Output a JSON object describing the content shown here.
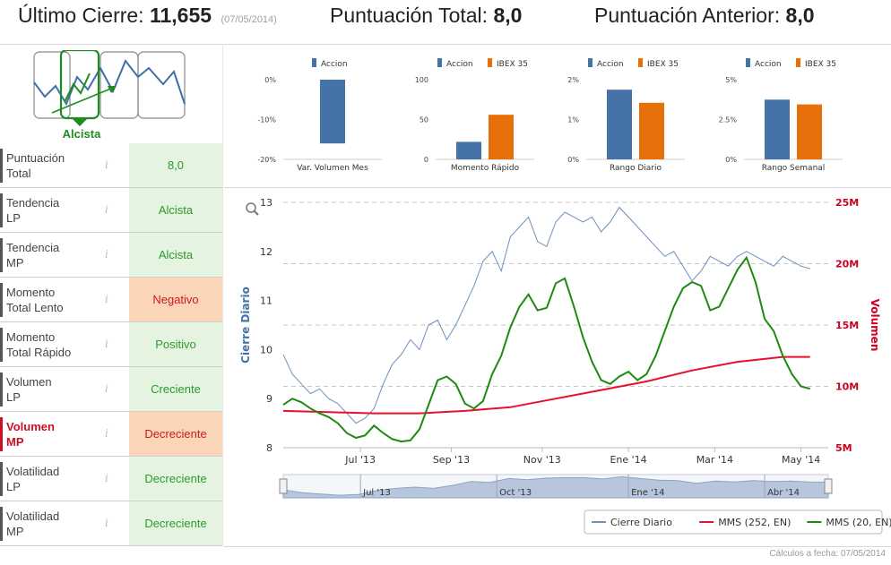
{
  "header": {
    "last_close_label": "Último Cierre:",
    "last_close_value": "11,655",
    "last_close_date": "(07/05/2014)",
    "total_score_label": "Puntuación Total:",
    "total_score_value": "8,0",
    "prev_score_label": "Puntuación Anterior:",
    "prev_score_value": "8,0"
  },
  "trend": {
    "caption": "Alcista"
  },
  "indicators": [
    {
      "label_1": "Puntuación",
      "label_2": "Total",
      "value": "8,0",
      "status": "good",
      "highlight": false
    },
    {
      "label_1": "Tendencia",
      "label_2": "LP",
      "value": "Alcista",
      "status": "good",
      "highlight": false
    },
    {
      "label_1": "Tendencia",
      "label_2": "MP",
      "value": "Alcista",
      "status": "good",
      "highlight": false
    },
    {
      "label_1": "Momento",
      "label_2": "Total Lento",
      "value": "Negativo",
      "status": "bad",
      "highlight": false
    },
    {
      "label_1": "Momento",
      "label_2": "Total Rápido",
      "value": "Positivo",
      "status": "good",
      "highlight": false
    },
    {
      "label_1": "Volumen",
      "label_2": "LP",
      "value": "Creciente",
      "status": "good",
      "highlight": false
    },
    {
      "label_1": "Volumen",
      "label_2": "MP",
      "value": "Decreciente",
      "status": "bad",
      "highlight": true
    },
    {
      "label_1": "Volatilidad",
      "label_2": "LP",
      "value": "Decreciente",
      "status": "good",
      "highlight": false
    },
    {
      "label_1": "Volatilidad",
      "label_2": "MP",
      "value": "Decreciente",
      "status": "good",
      "highlight": false
    }
  ],
  "info_glyph": "i",
  "colors": {
    "accion": "#4572a7",
    "ibex": "#e8700a",
    "cierre": "#6e8fbf",
    "mms252": "#e8102a",
    "mms20": "#1e8a12",
    "axis_blue": "#4572a7",
    "axis_red": "#cc0020"
  },
  "chart_data": [
    {
      "type": "bar",
      "categories": [
        "Var. Volumen Mes"
      ],
      "series": [
        {
          "name": "Accion",
          "values": [
            -16
          ]
        }
      ],
      "ylim": [
        -20,
        0
      ],
      "yticks": [
        "0%",
        "-10%",
        "-20%"
      ],
      "ytick_values": [
        0,
        -10,
        -20
      ]
    },
    {
      "type": "bar",
      "categories": [
        "Momento Rápido"
      ],
      "series": [
        {
          "name": "Accion",
          "values": [
            22
          ]
        },
        {
          "name": "IBEX 35",
          "values": [
            56
          ]
        }
      ],
      "ylim": [
        0,
        100
      ],
      "yticks": [
        "100",
        "50",
        "0"
      ],
      "ytick_values": [
        100,
        50,
        0
      ]
    },
    {
      "type": "bar",
      "categories": [
        "Rango Diario"
      ],
      "series": [
        {
          "name": "Accion",
          "values": [
            1.75
          ]
        },
        {
          "name": "IBEX 35",
          "values": [
            1.42
          ]
        }
      ],
      "ylim": [
        0,
        2
      ],
      "yticks": [
        "2%",
        "1%",
        "0%"
      ],
      "ytick_values": [
        2,
        1,
        0
      ]
    },
    {
      "type": "bar",
      "categories": [
        "Rango Semanal"
      ],
      "series": [
        {
          "name": "Accion",
          "values": [
            3.75
          ]
        },
        {
          "name": "IBEX 35",
          "values": [
            3.45
          ]
        }
      ],
      "ylim": [
        0,
        5
      ],
      "yticks": [
        "5%",
        "2.5%",
        "0%"
      ],
      "ytick_values": [
        5,
        2.5,
        0
      ]
    },
    {
      "type": "line",
      "ylabel": "Cierre Diario",
      "y2label": "Volumen",
      "ylim": [
        8,
        13
      ],
      "yticks": [
        8,
        9,
        10,
        11,
        12,
        13
      ],
      "y2lim": [
        5,
        25
      ],
      "y2ticks": [
        "5M",
        "10M",
        "15M",
        "20M",
        "25M"
      ],
      "y2tick_values": [
        5,
        10,
        15,
        20,
        25
      ],
      "xlim": [
        0,
        12
      ],
      "xticks": [
        "Jul '13",
        "Sep '13",
        "Nov '13",
        "Ene '14",
        "Mar '14",
        "May '14"
      ],
      "xtick_values": [
        1.7,
        3.7,
        5.7,
        7.6,
        9.5,
        11.4
      ],
      "navigator_ticks": [
        "Jul '13",
        "Oct '13",
        "Ene '14",
        "Abr '14"
      ],
      "navigator_tick_values": [
        1.7,
        4.7,
        7.6,
        10.6
      ],
      "legend": [
        "Cierre Diario",
        "MMS (252, EN)",
        "MMS (20, EN)"
      ],
      "series": [
        {
          "name": "Cierre Diario",
          "axis": "left",
          "x": [
            0,
            0.2,
            0.4,
            0.6,
            0.8,
            1.0,
            1.2,
            1.4,
            1.6,
            1.8,
            2.0,
            2.2,
            2.4,
            2.6,
            2.8,
            3.0,
            3.2,
            3.4,
            3.6,
            3.8,
            4.0,
            4.2,
            4.4,
            4.6,
            4.8,
            5.0,
            5.2,
            5.4,
            5.6,
            5.8,
            6.0,
            6.2,
            6.4,
            6.6,
            6.8,
            7.0,
            7.2,
            7.4,
            7.6,
            7.8,
            8.0,
            8.2,
            8.4,
            8.6,
            8.8,
            9.0,
            9.2,
            9.4,
            9.6,
            9.8,
            10.0,
            10.2,
            10.4,
            10.6,
            10.8,
            11.0,
            11.2,
            11.4,
            11.6
          ],
          "values": [
            9.9,
            9.5,
            9.3,
            9.1,
            9.2,
            9.0,
            8.9,
            8.7,
            8.5,
            8.6,
            8.8,
            9.3,
            9.7,
            9.9,
            10.2,
            10.0,
            10.5,
            10.6,
            10.2,
            10.5,
            10.9,
            11.3,
            11.8,
            12.0,
            11.6,
            12.3,
            12.5,
            12.7,
            12.2,
            12.1,
            12.6,
            12.8,
            12.7,
            12.6,
            12.7,
            12.4,
            12.6,
            12.9,
            12.7,
            12.5,
            12.3,
            12.1,
            11.9,
            12.0,
            11.7,
            11.4,
            11.6,
            11.9,
            11.8,
            11.7,
            11.9,
            12.0,
            11.9,
            11.8,
            11.7,
            11.9,
            11.8,
            11.7,
            11.65
          ]
        },
        {
          "name": "MMS (252, EN)",
          "axis": "right",
          "x": [
            0,
            1,
            2,
            3,
            4,
            5,
            6,
            7,
            8,
            9,
            10,
            11,
            11.6
          ],
          "values": [
            8.0,
            7.9,
            7.8,
            7.8,
            8.0,
            8.3,
            9.0,
            9.7,
            10.4,
            11.3,
            12.0,
            12.4,
            12.4
          ]
        },
        {
          "name": "MMS (20, EN)",
          "axis": "right",
          "x": [
            0,
            0.2,
            0.4,
            0.6,
            0.8,
            1.0,
            1.2,
            1.4,
            1.6,
            1.8,
            2.0,
            2.2,
            2.4,
            2.6,
            2.8,
            3.0,
            3.2,
            3.4,
            3.6,
            3.8,
            4.0,
            4.2,
            4.4,
            4.6,
            4.8,
            5.0,
            5.2,
            5.4,
            5.6,
            5.8,
            6.0,
            6.2,
            6.4,
            6.6,
            6.8,
            7.0,
            7.2,
            7.4,
            7.6,
            7.8,
            8.0,
            8.2,
            8.4,
            8.6,
            8.8,
            9.0,
            9.2,
            9.4,
            9.6,
            9.8,
            10.0,
            10.2,
            10.4,
            10.6,
            10.8,
            11.0,
            11.2,
            11.4,
            11.6
          ],
          "values": [
            8.5,
            9.0,
            8.7,
            8.2,
            7.8,
            7.5,
            7.0,
            6.2,
            5.8,
            6.0,
            6.8,
            6.2,
            5.7,
            5.5,
            5.6,
            6.5,
            8.5,
            10.5,
            10.8,
            10.2,
            8.6,
            8.2,
            8.8,
            11.0,
            12.5,
            14.8,
            16.5,
            17.5,
            16.2,
            16.4,
            18.4,
            18.8,
            16.5,
            14.0,
            12.0,
            10.5,
            10.2,
            10.8,
            11.2,
            10.5,
            11.0,
            12.5,
            14.5,
            16.5,
            18.0,
            18.5,
            18.2,
            16.2,
            16.5,
            18.0,
            19.5,
            20.5,
            18.5,
            15.5,
            14.5,
            12.5,
            11.0,
            10.0,
            9.8
          ]
        }
      ],
      "navigator_values": [
        9.9,
        9.2,
        8.9,
        8.6,
        8.8,
        9.7,
        10.2,
        10.5,
        10.2,
        10.9,
        11.8,
        11.6,
        12.5,
        12.2,
        12.6,
        12.7,
        12.7,
        12.4,
        12.9,
        12.5,
        12.1,
        12.0,
        11.4,
        11.9,
        11.7,
        12.0,
        11.8,
        11.9,
        11.7,
        11.65
      ]
    }
  ],
  "footer": {
    "text": "Cálculos a fecha: 07/05/2014"
  }
}
